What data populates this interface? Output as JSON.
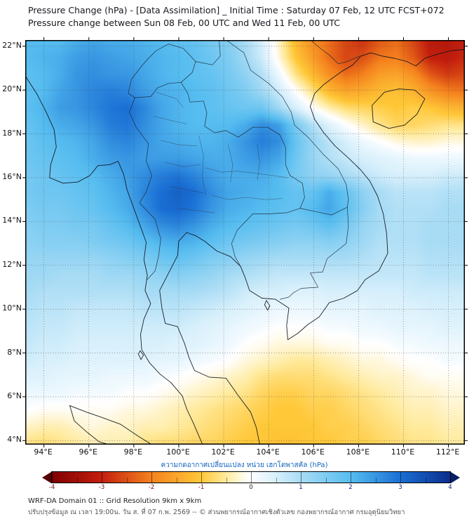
{
  "chart_data": {
    "type": "heatmap",
    "title": "Pressure Change (hPa) - [Data Assimilation] _ Initial Time : Saturday 07 Feb, 12 UTC FCST+072",
    "subtitle": "Pressure change between Sun 08 Feb, 00 UTC and Wed 11 Feb, 00 UTC",
    "colorbar_label": "ความกดอากาศเปลี่ยนแปลง หน่วย เฮกโตพาสคัล (hPa)",
    "units": "hPa",
    "lon_range": [
      93.2,
      112.7
    ],
    "lat_range": [
      3.85,
      22.25
    ],
    "lon_ticks": {
      "values": [
        94,
        96,
        98,
        100,
        102,
        104,
        106,
        108,
        110,
        112
      ],
      "labels": [
        "94°E",
        "96°E",
        "98°E",
        "100°E",
        "102°E",
        "104°E",
        "106°E",
        "108°E",
        "110°E",
        "112°E"
      ]
    },
    "lat_ticks": {
      "values": [
        22,
        20,
        18,
        16,
        14,
        12,
        10,
        8,
        6,
        4
      ],
      "labels": [
        "22°N",
        "20°N",
        "18°N",
        "16°N",
        "14°N",
        "12°N",
        "10°N",
        "8°N",
        "6°N",
        "4°N"
      ]
    },
    "colorbar": {
      "min": -4,
      "max": 4,
      "tick_values": [
        -4,
        -3,
        -2,
        -1,
        0,
        1,
        2,
        3,
        4
      ],
      "tick_labels": [
        "-4",
        "-3",
        "-2",
        "-1",
        "0",
        "1",
        "2",
        "3",
        "4"
      ],
      "minor_tick_step": 0.5,
      "extend_left_color": "#5a0000",
      "extend_right_color": "#061f66",
      "stops": [
        {
          "value": -4.5,
          "color": "#5a0000"
        },
        {
          "value": -4.0,
          "color": "#7f0000"
        },
        {
          "value": -3.0,
          "color": "#c41f0e"
        },
        {
          "value": -2.0,
          "color": "#f5821e"
        },
        {
          "value": -1.0,
          "color": "#ffc838"
        },
        {
          "value": -0.5,
          "color": "#ffeb9e"
        },
        {
          "value": -0.1,
          "color": "#fffdf5"
        },
        {
          "value": 0.0,
          "color": "#ffffff"
        },
        {
          "value": 0.1,
          "color": "#f4fbff"
        },
        {
          "value": 0.5,
          "color": "#d8f0fc"
        },
        {
          "value": 1.0,
          "color": "#a8dcf5"
        },
        {
          "value": 2.0,
          "color": "#56bdf0"
        },
        {
          "value": 3.0,
          "color": "#1a6fd4"
        },
        {
          "value": 4.0,
          "color": "#0b2e8c"
        },
        {
          "value": 4.5,
          "color": "#061f66"
        }
      ]
    },
    "grid": {
      "description": "Estimated pressure-change values (hPa) on a regular lon-lat grid spanning lon_range west-to-east (columns) and lat_range north-to-south (rows).",
      "nx": 27,
      "ny": 25,
      "values": [
        [
          2.0,
          2.0,
          2.0,
          2.2,
          2.3,
          2.2,
          2.2,
          2.1,
          2.0,
          1.9,
          1.8,
          1.6,
          1.4,
          1.0,
          0.5,
          -0.3,
          -1.2,
          -1.8,
          -2.2,
          -2.6,
          -2.8,
          -2.4,
          -2.2,
          -2.6,
          -3.1,
          -3.2,
          -3.0
        ],
        [
          2.0,
          2.1,
          2.2,
          2.4,
          2.5,
          2.4,
          2.3,
          2.2,
          2.1,
          2.0,
          1.9,
          1.7,
          1.5,
          1.1,
          0.6,
          -0.2,
          -1.0,
          -1.6,
          -2.2,
          -2.6,
          -2.5,
          -2.1,
          -2.0,
          -2.4,
          -3.0,
          -3.1,
          -2.9
        ],
        [
          1.9,
          2.0,
          2.2,
          2.5,
          2.6,
          2.5,
          2.5,
          2.3,
          2.1,
          2.0,
          1.9,
          1.8,
          1.6,
          1.3,
          0.9,
          0.2,
          -0.6,
          -1.2,
          -1.8,
          -2.2,
          -2.0,
          -1.6,
          -1.5,
          -1.8,
          -2.4,
          -2.7,
          -2.6
        ],
        [
          1.9,
          2.0,
          2.3,
          2.5,
          2.7,
          2.8,
          2.7,
          2.4,
          2.2,
          2.1,
          2.0,
          1.9,
          1.7,
          1.5,
          1.1,
          0.6,
          0.0,
          -0.6,
          -1.2,
          -1.5,
          -1.4,
          -1.2,
          -1.1,
          -1.3,
          -1.7,
          -2.0,
          -2.1
        ],
        [
          1.9,
          2.1,
          2.4,
          2.5,
          2.7,
          2.9,
          3.0,
          2.7,
          2.3,
          2.1,
          2.0,
          1.9,
          1.8,
          1.7,
          1.7,
          1.1,
          0.5,
          0.0,
          -0.4,
          -0.7,
          -0.8,
          -0.9,
          -1.0,
          -0.9,
          -1.0,
          -1.2,
          -1.3
        ],
        [
          1.8,
          2.0,
          2.2,
          2.3,
          2.5,
          2.8,
          2.9,
          2.6,
          2.3,
          2.1,
          2.0,
          2.0,
          2.0,
          2.2,
          2.6,
          2.4,
          1.6,
          0.9,
          0.4,
          0.0,
          -0.3,
          -0.6,
          -0.8,
          -0.8,
          -0.7,
          -0.6,
          -0.6
        ],
        [
          1.7,
          1.9,
          2.0,
          2.1,
          2.3,
          2.6,
          2.7,
          2.5,
          2.3,
          2.2,
          2.1,
          2.1,
          2.2,
          2.5,
          2.8,
          2.6,
          1.8,
          1.2,
          0.8,
          0.5,
          0.2,
          0.0,
          -0.2,
          -0.3,
          -0.3,
          -0.2,
          -0.2
        ],
        [
          1.7,
          1.8,
          1.9,
          2.0,
          2.2,
          2.4,
          2.5,
          2.4,
          2.4,
          2.4,
          2.3,
          2.2,
          2.2,
          2.4,
          2.5,
          2.3,
          1.7,
          1.2,
          0.9,
          0.7,
          0.5,
          0.4,
          0.3,
          0.2,
          0.2,
          0.2,
          0.2
        ],
        [
          1.6,
          1.7,
          1.8,
          1.9,
          2.0,
          2.2,
          2.4,
          2.6,
          2.8,
          2.9,
          2.7,
          2.4,
          2.2,
          2.2,
          2.2,
          2.0,
          1.6,
          1.3,
          1.2,
          1.0,
          0.8,
          0.6,
          0.5,
          0.5,
          0.5,
          0.6,
          0.6
        ],
        [
          1.6,
          1.7,
          1.7,
          1.8,
          1.9,
          2.1,
          2.3,
          2.7,
          3.0,
          3.2,
          3.0,
          2.6,
          2.3,
          2.2,
          2.1,
          2.0,
          1.8,
          1.8,
          2.2,
          1.8,
          1.3,
          1.0,
          0.8,
          0.8,
          0.8,
          0.9,
          0.9
        ],
        [
          1.5,
          1.6,
          1.6,
          1.7,
          1.8,
          2.0,
          2.2,
          2.6,
          3.0,
          3.1,
          2.9,
          2.5,
          2.2,
          2.1,
          2.0,
          1.9,
          1.8,
          2.0,
          2.3,
          1.9,
          1.4,
          1.0,
          0.9,
          0.9,
          0.9,
          1.0,
          1.0
        ],
        [
          1.4,
          1.5,
          1.5,
          1.6,
          1.6,
          1.8,
          2.0,
          2.3,
          2.6,
          2.7,
          2.5,
          2.2,
          2.0,
          1.9,
          1.8,
          1.7,
          1.6,
          1.7,
          1.9,
          1.6,
          1.2,
          1.0,
          0.9,
          0.9,
          1.0,
          1.0,
          1.0
        ],
        [
          1.3,
          1.4,
          1.4,
          1.4,
          1.5,
          1.6,
          1.7,
          1.9,
          2.1,
          2.2,
          2.1,
          1.9,
          1.7,
          1.6,
          1.5,
          1.4,
          1.3,
          1.3,
          1.4,
          1.3,
          1.1,
          0.9,
          0.9,
          0.9,
          1.0,
          1.0,
          1.0
        ],
        [
          1.2,
          1.2,
          1.2,
          1.2,
          1.2,
          1.3,
          1.4,
          1.5,
          1.7,
          1.8,
          1.7,
          1.5,
          1.4,
          1.2,
          1.1,
          1.0,
          1.0,
          1.0,
          1.0,
          1.0,
          0.9,
          0.8,
          0.8,
          0.8,
          0.9,
          0.9,
          0.9
        ],
        [
          1.1,
          1.1,
          1.0,
          1.0,
          1.0,
          1.1,
          1.1,
          1.2,
          1.3,
          1.4,
          1.3,
          1.2,
          1.0,
          0.9,
          0.8,
          0.7,
          0.7,
          0.7,
          0.7,
          0.7,
          0.7,
          0.7,
          0.7,
          0.7,
          0.8,
          0.8,
          0.8
        ],
        [
          1.0,
          0.9,
          0.9,
          0.9,
          0.9,
          0.9,
          0.9,
          1.0,
          1.0,
          1.0,
          1.0,
          0.9,
          0.8,
          0.6,
          0.5,
          0.5,
          0.4,
          0.4,
          0.5,
          0.5,
          0.5,
          0.5,
          0.5,
          0.6,
          0.6,
          0.6,
          0.6
        ],
        [
          0.9,
          0.8,
          0.8,
          0.7,
          0.7,
          0.7,
          0.7,
          0.8,
          0.8,
          0.8,
          0.7,
          0.6,
          0.5,
          0.4,
          0.3,
          0.2,
          0.2,
          0.2,
          0.3,
          0.3,
          0.3,
          0.4,
          0.4,
          0.4,
          0.5,
          0.5,
          0.5
        ],
        [
          0.8,
          0.7,
          0.7,
          0.6,
          0.6,
          0.6,
          0.6,
          0.6,
          0.6,
          0.6,
          0.5,
          0.4,
          0.3,
          0.2,
          0.1,
          0.0,
          0.0,
          0.0,
          0.1,
          0.1,
          0.2,
          0.2,
          0.3,
          0.3,
          0.3,
          0.4,
          0.4
        ],
        [
          0.7,
          0.6,
          0.6,
          0.5,
          0.5,
          0.5,
          0.5,
          0.5,
          0.5,
          0.4,
          0.4,
          0.3,
          0.2,
          0.0,
          -0.1,
          -0.2,
          -0.2,
          -0.2,
          -0.1,
          -0.1,
          0.0,
          0.0,
          0.1,
          0.1,
          0.2,
          0.2,
          0.2
        ],
        [
          0.6,
          0.5,
          0.5,
          0.4,
          0.4,
          0.4,
          0.4,
          0.4,
          0.3,
          0.3,
          0.2,
          0.1,
          0.0,
          -0.2,
          -0.3,
          -0.4,
          -0.5,
          -0.5,
          -0.4,
          -0.3,
          -0.2,
          -0.2,
          -0.1,
          0.0,
          0.0,
          0.1,
          0.1
        ],
        [
          0.4,
          0.4,
          0.3,
          0.3,
          0.3,
          0.2,
          0.2,
          0.2,
          0.1,
          0.0,
          -0.1,
          -0.2,
          -0.3,
          -0.4,
          -0.6,
          -0.7,
          -0.7,
          -0.7,
          -0.6,
          -0.5,
          -0.4,
          -0.3,
          -0.3,
          -0.2,
          -0.1,
          -0.1,
          -0.1
        ],
        [
          0.2,
          0.2,
          0.2,
          0.1,
          0.1,
          0.1,
          0.0,
          0.0,
          -0.1,
          -0.2,
          -0.3,
          -0.4,
          -0.5,
          -0.6,
          -0.8,
          -0.9,
          -0.9,
          -0.8,
          -0.8,
          -0.7,
          -0.6,
          -0.5,
          -0.4,
          -0.3,
          -0.3,
          -0.2,
          -0.2
        ],
        [
          0.0,
          -0.1,
          -0.1,
          -0.1,
          -0.1,
          -0.1,
          -0.2,
          -0.2,
          -0.3,
          -0.4,
          -0.5,
          -0.6,
          -0.7,
          -0.8,
          -0.9,
          -1.0,
          -1.0,
          -0.9,
          -0.9,
          -0.8,
          -0.7,
          -0.6,
          -0.5,
          -0.4,
          -0.4,
          -0.3,
          -0.3
        ],
        [
          -0.3,
          -0.4,
          -0.4,
          -0.3,
          -0.2,
          -0.3,
          -0.3,
          -0.4,
          -0.4,
          -0.5,
          -0.6,
          -0.7,
          -0.8,
          -0.9,
          -1.0,
          -1.0,
          -1.0,
          -1.0,
          -0.9,
          -0.9,
          -0.8,
          -0.7,
          -0.6,
          -0.5,
          -0.5,
          -0.4,
          -0.4
        ],
        [
          -0.6,
          -0.7,
          -0.6,
          -0.5,
          -0.4,
          -0.4,
          -0.4,
          -0.6,
          -0.7,
          -0.7,
          -0.8,
          -0.8,
          -0.9,
          -1.0,
          -1.0,
          -1.1,
          -1.1,
          -1.0,
          -1.0,
          -0.9,
          -0.9,
          -0.8,
          -0.7,
          -0.6,
          -0.6,
          -0.5,
          -0.5
        ]
      ]
    }
  },
  "footer": {
    "line1": "WRF-DA Domain 01 :: Grid Resolution 9km x 9km",
    "line2": "ปรับปรุงข้อมูล ณ เวลา 19:00น. วัน ส. ที่ 07 ก.พ. 2569 -- © ส่วนพยากรณ์อากาศเชิงตัวเลข กองพยากรณ์อากาศ กรมอุตุนิยมวิทยา"
  }
}
